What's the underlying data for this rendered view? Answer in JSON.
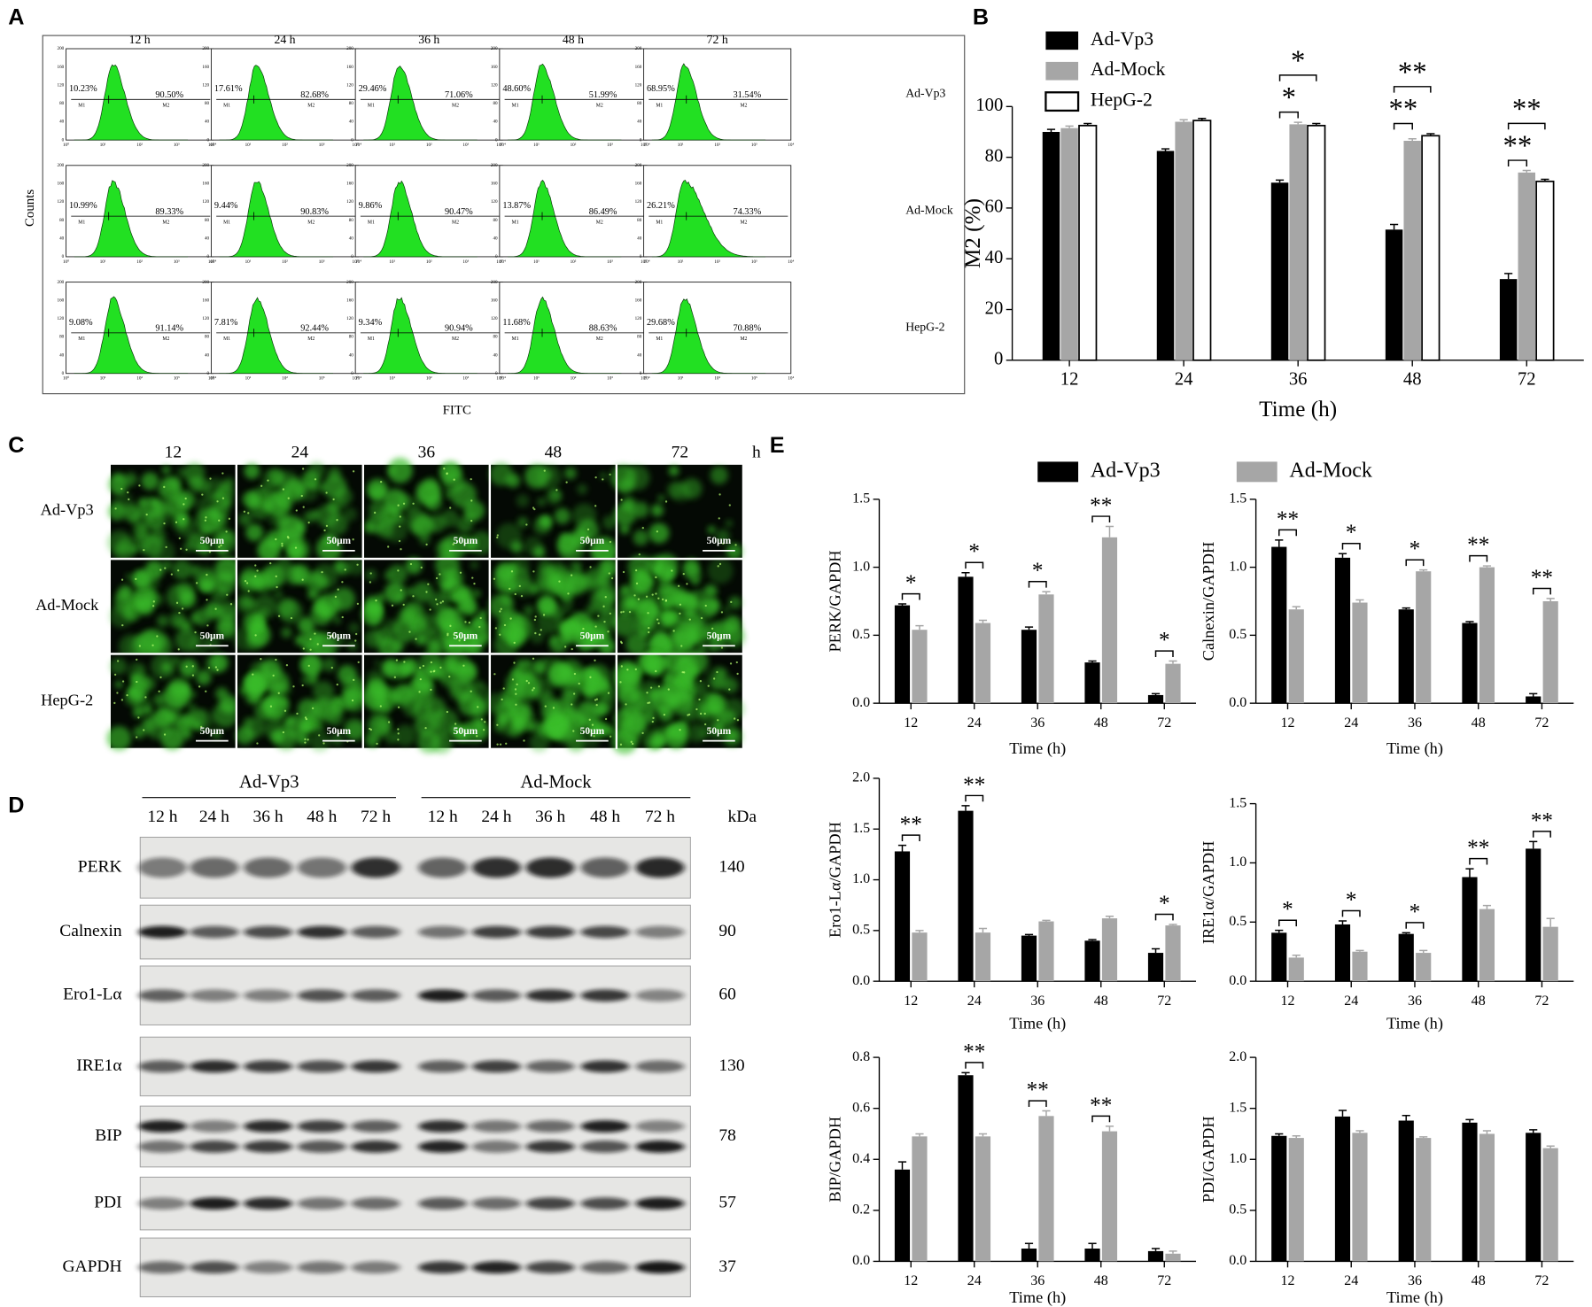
{
  "panel_labels": [
    "A",
    "B",
    "C",
    "D",
    "E"
  ],
  "panel_a": {
    "columns": [
      "12 h",
      "24 h",
      "36 h",
      "48 h",
      "72 h"
    ],
    "rows": [
      "Ad-Vp3",
      "Ad-Mock",
      "HepG-2"
    ],
    "y_label": "Counts",
    "x_label": "FITC",
    "gate_labels": [
      "M1",
      "M2"
    ],
    "y_ticks": [
      "0",
      "40",
      "80",
      "120",
      "160",
      "200"
    ],
    "x_ticks": [
      "10⁰",
      "10¹",
      "10²",
      "10³",
      "10⁴"
    ],
    "cells": [
      [
        {
          "m1": "10.23%",
          "m2": "90.50%"
        },
        {
          "m1": "17.61%",
          "m2": "82.68%"
        },
        {
          "m1": "29.46%",
          "m2": "71.06%"
        },
        {
          "m1": "48.60%",
          "m2": "51.99%"
        },
        {
          "m1": "68.95%",
          "m2": "31.54%"
        }
      ],
      [
        {
          "m1": "10.99%",
          "m2": "89.33%"
        },
        {
          "m1": "9.44%",
          "m2": "90.83%"
        },
        {
          "m1": "9.86%",
          "m2": "90.47%"
        },
        {
          "m1": "13.87%",
          "m2": "86.49%"
        },
        {
          "m1": "26.21%",
          "m2": "74.33%"
        }
      ],
      [
        {
          "m1": "9.08%",
          "m2": "91.14%"
        },
        {
          "m1": "7.81%",
          "m2": "92.44%"
        },
        {
          "m1": "9.34%",
          "m2": "90.94%"
        },
        {
          "m1": "11.68%",
          "m2": "88.63%"
        },
        {
          "m1": "29.68%",
          "m2": "70.88%"
        }
      ]
    ]
  },
  "panel_c": {
    "columns": [
      "12",
      "24",
      "36",
      "48",
      "72"
    ],
    "unit": "h",
    "rows": [
      "Ad-Vp3",
      "Ad-Mock",
      "HepG-2"
    ],
    "scale_bar": "50μm"
  },
  "panel_d": {
    "groups": [
      "Ad-Vp3",
      "Ad-Mock"
    ],
    "lanes": [
      "12 h",
      "24 h",
      "36 h",
      "48 h",
      "72 h"
    ],
    "unit_header": "kDa",
    "proteins": [
      {
        "name": "PERK",
        "kda": "140"
      },
      {
        "name": "Calnexin",
        "kda": "90"
      },
      {
        "name": "Ero1-Lα",
        "kda": "60"
      },
      {
        "name": "IRE1α",
        "kda": "130"
      },
      {
        "name": "BIP",
        "kda": "78"
      },
      {
        "name": "PDI",
        "kda": "57"
      },
      {
        "name": "GAPDH",
        "kda": "37"
      }
    ]
  },
  "chart_data": [
    {
      "type": "bar",
      "ylabel": "M2 (%)",
      "xlabel": "Time (h)",
      "categories": [
        "12",
        "24",
        "36",
        "48",
        "72"
      ],
      "ylim": [
        0,
        100
      ],
      "yticks": [
        0,
        20,
        40,
        60,
        80,
        100
      ],
      "series": [
        {
          "name": "Ad-Vp3",
          "color": "#000000",
          "values": [
            90,
            82.5,
            70,
            51.5,
            32
          ],
          "errors": [
            1,
            0.8,
            1,
            2,
            2.2
          ]
        },
        {
          "name": "Ad-Mock",
          "color": "#a6a6a6",
          "values": [
            91.5,
            94,
            93,
            86.5,
            74
          ],
          "errors": [
            0.8,
            0.8,
            0.8,
            0.8,
            0.8
          ]
        },
        {
          "name": "HepG-2",
          "color": "#ffffff",
          "edgecolor": "#000000",
          "values": [
            92.5,
            94.5,
            92.5,
            88.5,
            70.5
          ],
          "errors": [
            0.8,
            0.8,
            0.8,
            0.8,
            0.8
          ]
        }
      ],
      "annotations": [
        {
          "text": "*",
          "category": "36",
          "between": [
            "Ad-Vp3",
            "Ad-Mock"
          ]
        },
        {
          "text": "*",
          "category": "36",
          "between": [
            "Ad-Vp3",
            "HepG-2"
          ]
        },
        {
          "text": "**",
          "category": "48",
          "between": [
            "Ad-Vp3",
            "Ad-Mock"
          ]
        },
        {
          "text": "**",
          "category": "48",
          "between": [
            "Ad-Vp3",
            "HepG-2"
          ]
        },
        {
          "text": "**",
          "category": "72",
          "between": [
            "Ad-Vp3",
            "Ad-Mock"
          ]
        },
        {
          "text": "**",
          "category": "72",
          "between": [
            "Ad-Vp3",
            "HepG-2"
          ]
        }
      ]
    },
    {
      "type": "bar",
      "ylabel": "PERK/GAPDH",
      "xlabel": "Time (h)",
      "categories": [
        "12",
        "24",
        "36",
        "48",
        "72"
      ],
      "ylim": [
        0,
        1.5
      ],
      "yticks": [
        {
          "value": 0,
          "label": "0.0"
        },
        {
          "value": 0.5,
          "label": "0.5"
        },
        {
          "value": 1,
          "label": "1.0"
        },
        {
          "value": 1.5,
          "label": "1.5"
        }
      ],
      "series": [
        {
          "name": "Ad-Vp3",
          "color": "#000000",
          "values": [
            0.72,
            0.93,
            0.54,
            0.3,
            0.06
          ],
          "errors": [
            0.01,
            0.03,
            0.02,
            0.01,
            0.01
          ]
        },
        {
          "name": "Ad-Mock",
          "color": "#a6a6a6",
          "values": [
            0.54,
            0.59,
            0.8,
            1.22,
            0.29
          ],
          "errors": [
            0.03,
            0.02,
            0.02,
            0.08,
            0.02
          ]
        }
      ],
      "annotations": [
        {
          "text": "*",
          "category": "12"
        },
        {
          "text": "*",
          "category": "24"
        },
        {
          "text": "*",
          "category": "36"
        },
        {
          "text": "**",
          "category": "48"
        },
        {
          "text": "*",
          "category": "72"
        }
      ]
    },
    {
      "type": "bar",
      "ylabel": "Calnexin/GAPDH",
      "xlabel": "Time (h)",
      "categories": [
        "12",
        "24",
        "36",
        "48",
        "72"
      ],
      "ylim": [
        0,
        1.5
      ],
      "yticks": [
        {
          "value": 0,
          "label": "0.0"
        },
        {
          "value": 0.5,
          "label": "0.5"
        },
        {
          "value": 1,
          "label": "1.0"
        },
        {
          "value": 1.5,
          "label": "1.5"
        }
      ],
      "series": [
        {
          "color": "#000000",
          "values": [
            1.15,
            1.07,
            0.69,
            0.59,
            0.05
          ],
          "errors": [
            0.05,
            0.03,
            0.01,
            0.01,
            0.02
          ]
        },
        {
          "color": "#a6a6a6",
          "values": [
            0.69,
            0.74,
            0.97,
            1.0,
            0.75
          ],
          "errors": [
            0.02,
            0.02,
            0.01,
            0.01,
            0.02
          ]
        }
      ],
      "annotations": [
        {
          "text": "**",
          "category": "12"
        },
        {
          "text": "*",
          "category": "24"
        },
        {
          "text": "*",
          "category": "36"
        },
        {
          "text": "**",
          "category": "48"
        },
        {
          "text": "**",
          "category": "72"
        }
      ]
    },
    {
      "type": "bar",
      "ylabel": "Ero1-Lα/GAPDH",
      "xlabel": "Time (h)",
      "categories": [
        "12",
        "24",
        "36",
        "48",
        "72"
      ],
      "ylim": [
        0,
        2
      ],
      "yticks": [
        {
          "value": 0,
          "label": "0.0"
        },
        {
          "value": 0.5,
          "label": "0.5"
        },
        {
          "value": 1,
          "label": "1.0"
        },
        {
          "value": 1.5,
          "label": "1.5"
        },
        {
          "value": 2,
          "label": "2.0"
        }
      ],
      "series": [
        {
          "color": "#000000",
          "values": [
            1.28,
            1.68,
            0.45,
            0.4,
            0.28
          ],
          "errors": [
            0.06,
            0.05,
            0.01,
            0.01,
            0.04
          ]
        },
        {
          "color": "#a6a6a6",
          "values": [
            0.48,
            0.48,
            0.59,
            0.62,
            0.55
          ],
          "errors": [
            0.02,
            0.04,
            0.01,
            0.02,
            0.01
          ]
        }
      ],
      "annotations": [
        {
          "text": "**",
          "category": "12"
        },
        {
          "text": "**",
          "category": "24"
        },
        {
          "text": "*",
          "category": "72"
        }
      ]
    },
    {
      "type": "bar",
      "ylabel": "IRE1α/GAPDH",
      "xlabel": "Time (h)",
      "categories": [
        "12",
        "24",
        "36",
        "48",
        "72"
      ],
      "ylim": [
        0,
        1.5
      ],
      "yticks": [
        {
          "value": 0,
          "label": "0.0"
        },
        {
          "value": 0.5,
          "label": "0.5"
        },
        {
          "value": 1,
          "label": "1.0"
        },
        {
          "value": 1.5,
          "label": "1.5"
        }
      ],
      "series": [
        {
          "color": "#000000",
          "values": [
            0.41,
            0.48,
            0.4,
            0.88,
            1.12
          ],
          "errors": [
            0.02,
            0.03,
            0.01,
            0.07,
            0.06
          ]
        },
        {
          "color": "#a6a6a6",
          "values": [
            0.2,
            0.25,
            0.24,
            0.61,
            0.46
          ],
          "errors": [
            0.02,
            0.01,
            0.02,
            0.03,
            0.07
          ]
        }
      ],
      "annotations": [
        {
          "text": "*",
          "category": "12"
        },
        {
          "text": "*",
          "category": "24"
        },
        {
          "text": "*",
          "category": "36"
        },
        {
          "text": "**",
          "category": "48"
        },
        {
          "text": "**",
          "category": "72"
        }
      ]
    },
    {
      "type": "bar",
      "ylabel": "BIP/GAPDH",
      "xlabel": "Time (h)",
      "categories": [
        "12",
        "24",
        "36",
        "48",
        "72"
      ],
      "ylim": [
        0,
        0.8
      ],
      "yticks": [
        {
          "value": 0,
          "label": "0.0"
        },
        {
          "value": 0.2,
          "label": "0.2"
        },
        {
          "value": 0.4,
          "label": "0.4"
        },
        {
          "value": 0.6,
          "label": "0.6"
        },
        {
          "value": 0.8,
          "label": "0.8"
        }
      ],
      "series": [
        {
          "color": "#000000",
          "values": [
            0.36,
            0.73,
            0.05,
            0.05,
            0.04
          ],
          "errors": [
            0.03,
            0.01,
            0.02,
            0.02,
            0.01
          ]
        },
        {
          "color": "#a6a6a6",
          "values": [
            0.49,
            0.49,
            0.57,
            0.51,
            0.03
          ],
          "errors": [
            0.01,
            0.01,
            0.02,
            0.02,
            0.01
          ]
        }
      ],
      "annotations": [
        {
          "text": "**",
          "category": "24"
        },
        {
          "text": "**",
          "category": "36"
        },
        {
          "text": "**",
          "category": "48"
        }
      ]
    },
    {
      "type": "bar",
      "ylabel": "PDI/GAPDH",
      "xlabel": "Time (h)",
      "categories": [
        "12",
        "24",
        "36",
        "48",
        "72"
      ],
      "ylim": [
        0,
        2
      ],
      "yticks": [
        {
          "value": 0,
          "label": "0.0"
        },
        {
          "value": 0.5,
          "label": "0.5"
        },
        {
          "value": 1,
          "label": "1.0"
        },
        {
          "value": 1.5,
          "label": "1.5"
        },
        {
          "value": 2,
          "label": "2.0"
        }
      ],
      "series": [
        {
          "color": "#000000",
          "values": [
            1.23,
            1.42,
            1.38,
            1.36,
            1.26
          ],
          "errors": [
            0.02,
            0.06,
            0.05,
            0.03,
            0.03
          ]
        },
        {
          "color": "#a6a6a6",
          "values": [
            1.21,
            1.26,
            1.21,
            1.25,
            1.11
          ],
          "errors": [
            0.02,
            0.02,
            0.01,
            0.03,
            0.02
          ]
        }
      ],
      "annotations": []
    }
  ]
}
